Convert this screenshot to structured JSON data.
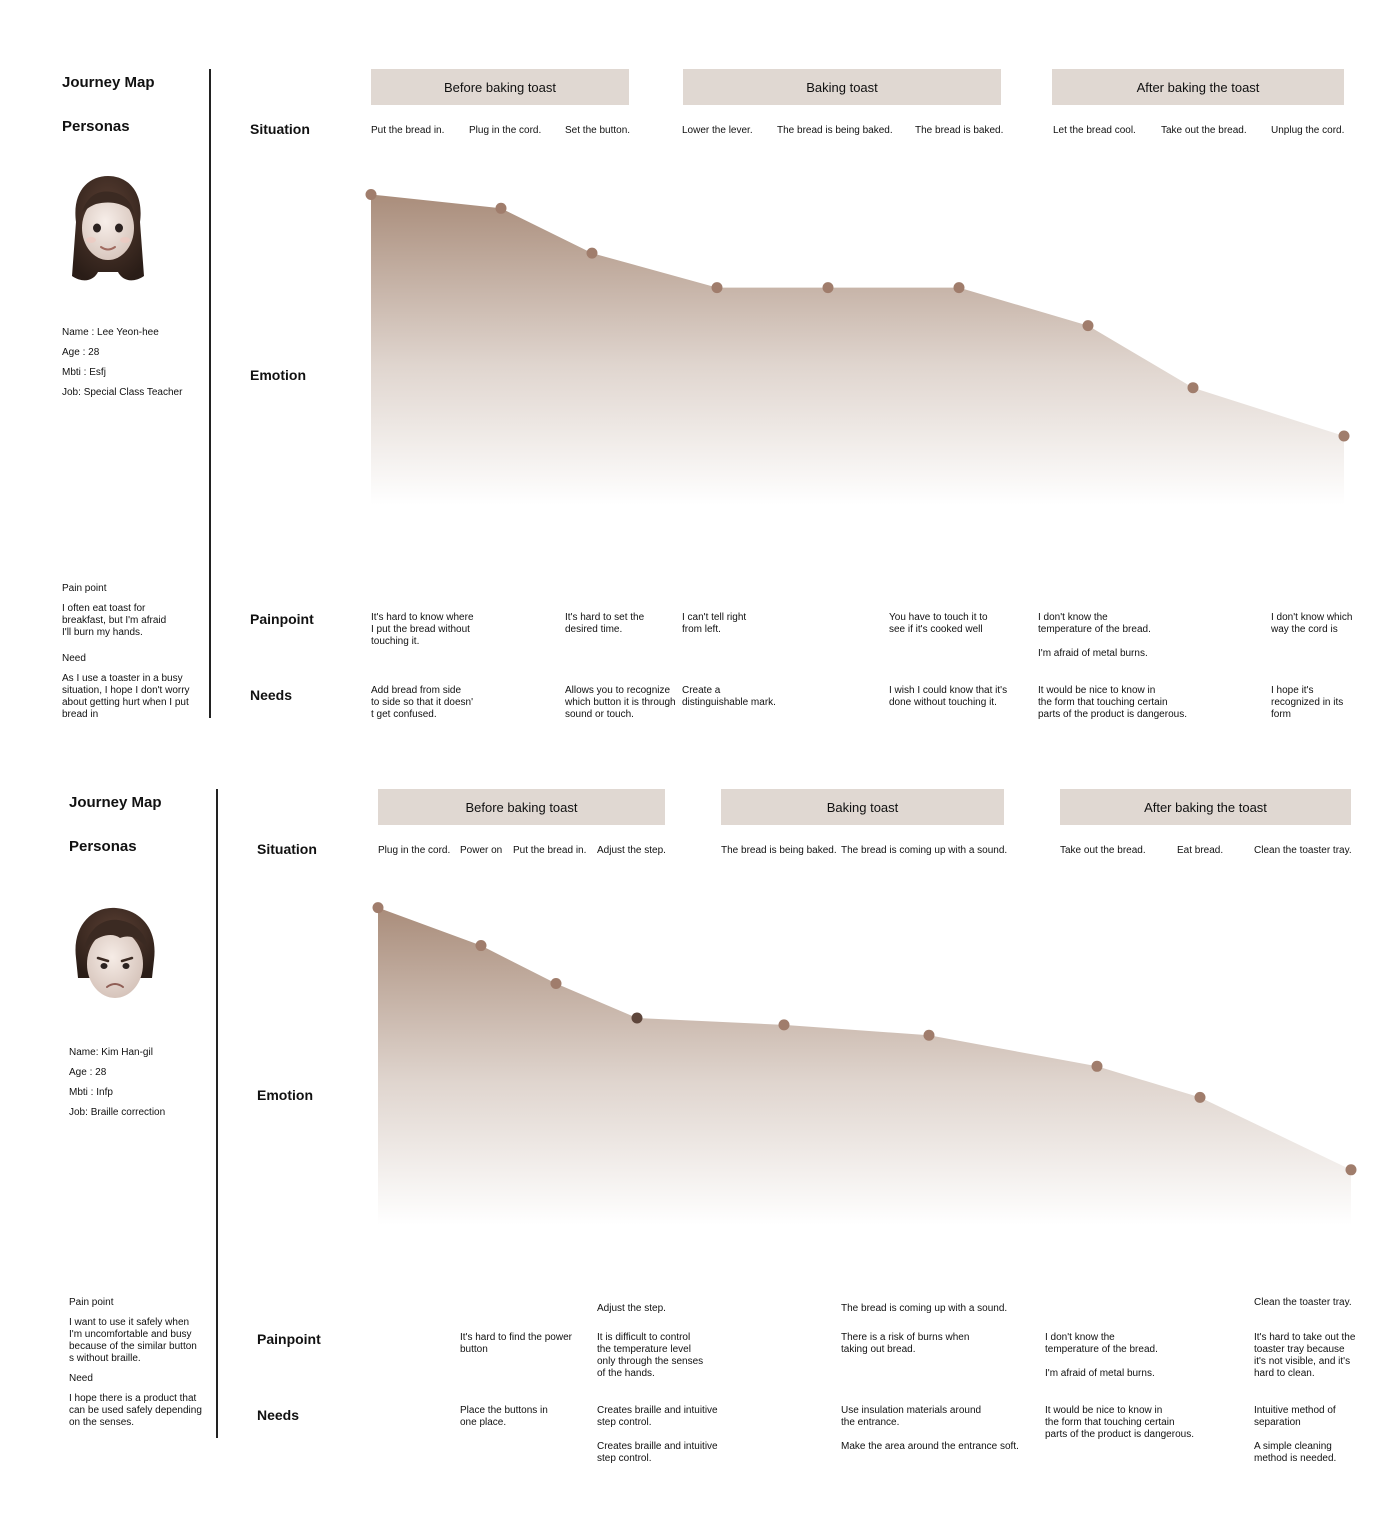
{
  "colors": {
    "phase_bg": "#e0d8d2",
    "area_top": "#a58774",
    "point": "#a07d6c",
    "point_dark": "#5e463b"
  },
  "maps": [
    {
      "title": "Journey Map",
      "personas_label": "Personas",
      "avatar_icon": "female-persona-avatar-icon",
      "persona": {
        "name_label": "Name",
        "name": "Lee Yeon-hee",
        "age_label": "Age",
        "age": "28",
        "mbti_label": "Mbti",
        "mbti": "Esfj",
        "job_label": "Job",
        "job": "Special Class Teacher"
      },
      "pain_point_label": "Pain point",
      "pain_point_text": "I often eat toast for\nbreakfast, but I'm afraid\nI'll burn my hands.",
      "need_label": "Need",
      "need_text": "As I use a toaster in a busy\nsituation, I hope I don't worry\nabout getting hurt when I put\nbread in",
      "row_labels": {
        "situation": "Situation",
        "emotion": "Emotion",
        "painpoint": "Painpoint",
        "needs": "Needs"
      },
      "phases": [
        "Before baking toast",
        "Baking toast",
        "After baking the toast"
      ],
      "situations": [
        "Put the bread in.",
        "Plug in the cord.",
        "Set the button.",
        "Lower the lever.",
        "The bread is being baked.",
        "The bread is baked.",
        "Let the bread cool.",
        "Take out the bread.",
        "Unplug the cord."
      ],
      "emotion_values": [
        90,
        86,
        73,
        63,
        63,
        63,
        52,
        34,
        20
      ],
      "painpoints": [
        "It's hard to know where\nI put the bread without\ntouching it.",
        "It's hard to set the\ndesired time.",
        "I can't tell right\n from left.",
        "You have to touch it to\n see if it's cooked well",
        "I don't know the\ntemperature of the bread.\n\nI'm afraid of metal burns.",
        "I don't know which\nway the cord is"
      ],
      "needs": [
        "Add bread from side\nto side so that it doesn'\nt get confused.",
        "Allows you to recognize\nwhich button it is through\nsound or touch.",
        "Create a\ndistinguishable mark.",
        "I wish I could know that it's\n done without touching it.",
        "It would be nice to know in\nthe form that touching certain\nparts of the product is dangerous.",
        "I hope it's\nrecognized in its\nform"
      ]
    },
    {
      "title": "Journey Map",
      "personas_label": "Personas",
      "avatar_icon": "male-persona-avatar-icon",
      "persona": {
        "name_label": "Name",
        "name": "Kim Han-gil",
        "age_label": "Age",
        "age": "28",
        "mbti_label": "Mbti",
        "mbti": "Infp",
        "job_label": "Job",
        "job": "Braille correction"
      },
      "pain_point_label": "Pain point",
      "pain_point_text": "I want to use it safely when\nI'm uncomfortable and busy\nbecause of the similar button\ns without braille.",
      "need_label": "Need",
      "need_text": "I hope there is a product that\ncan be used safely depending\n on the senses.",
      "row_labels": {
        "situation": "Situation",
        "emotion": "Emotion",
        "painpoint": "Painpoint",
        "needs": "Needs"
      },
      "phases": [
        "Before baking toast",
        "Baking toast",
        "After baking the toast"
      ],
      "situations": [
        "Plug in the cord.",
        "Power on",
        "Put the bread in.",
        "Adjust the step.",
        "The bread is being baked.",
        "The bread is coming up with a sound.",
        "Take out the bread.",
        "Eat bread.",
        "Clean the toaster tray."
      ],
      "emotion_values": [
        92,
        81,
        70,
        60,
        58,
        55,
        46,
        37,
        16
      ],
      "step_titles": [
        "Adjust the step.",
        "The bread is coming up with a sound.",
        "Clean the toaster tray."
      ],
      "painpoints": [
        "It's hard to find the power\n button",
        "It is difficult to control\n the temperature level\n only through the senses\nof the hands.",
        "There is a risk of burns when\n taking out bread.",
        "I don't know the\ntemperature of the bread.\n\nI'm afraid of metal burns.",
        "It's hard to take out the\n toaster tray because\nit's not visible, and it's\n hard to clean."
      ],
      "needs": [
        "Place the buttons in\none place.",
        "Creates braille and intuitive\n step control.\n\nCreates braille and intuitive\nstep control.",
        "Use insulation materials around\n the entrance.\n\nMake the area around the entrance soft.",
        "It would be nice to know in\nthe form that touching certain\nparts of the product is dangerous.",
        "Intuitive method of\nseparation\n\nA simple cleaning\nmethod is needed."
      ]
    }
  ]
}
